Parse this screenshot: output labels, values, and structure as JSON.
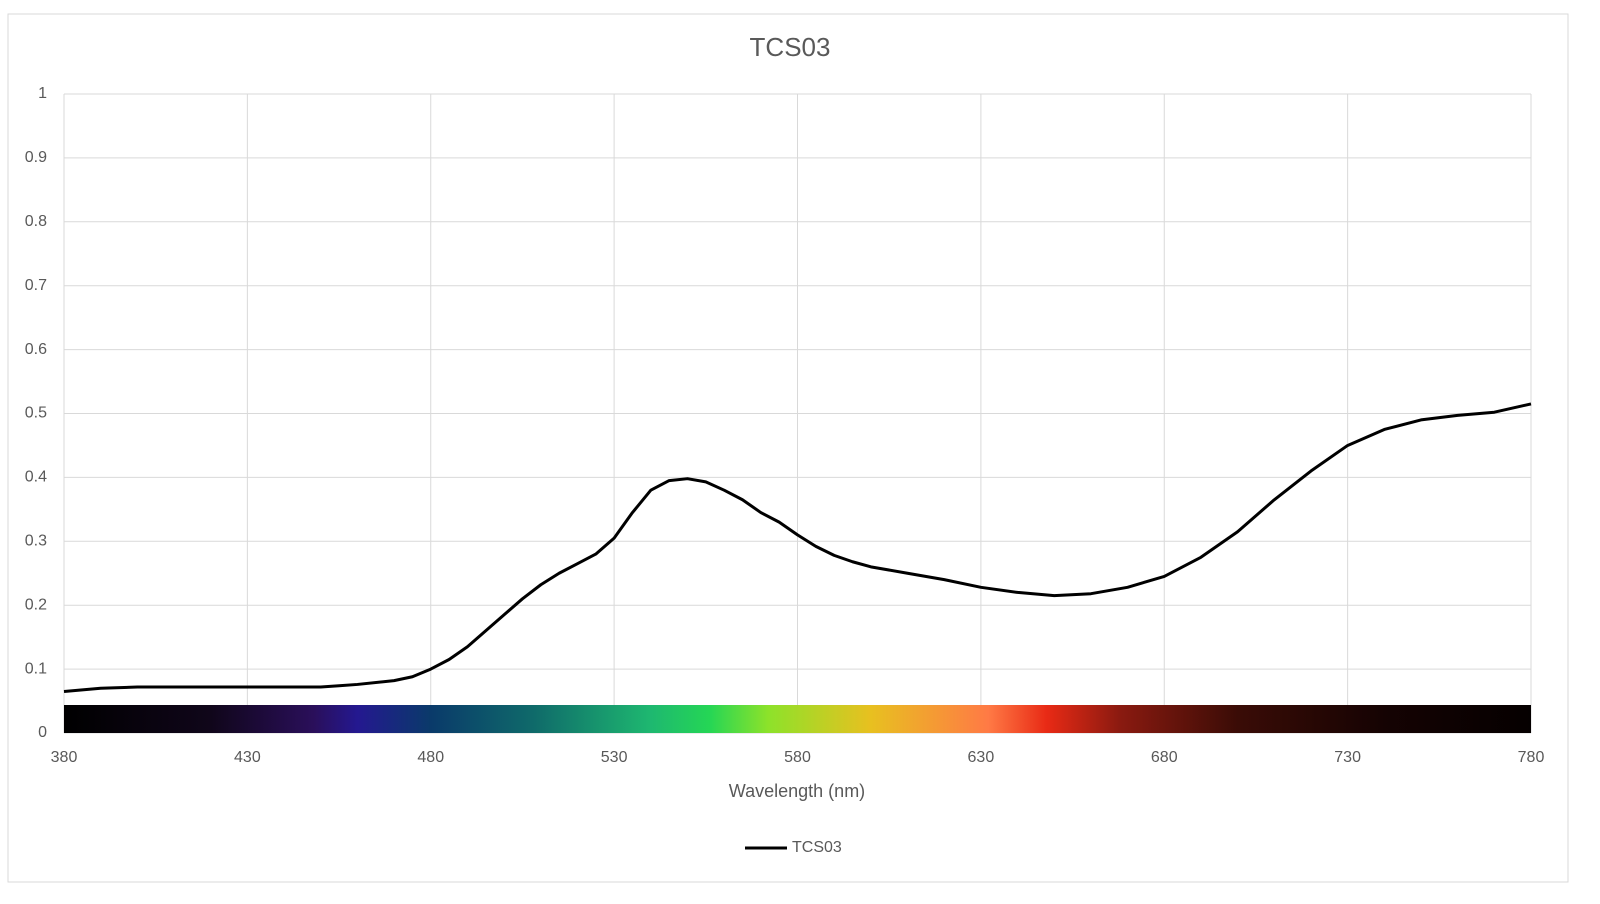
{
  "chart_data": {
    "type": "line",
    "title": "TCS03",
    "x_label": "Wavelength (nm)",
    "x": [
      380,
      390,
      400,
      410,
      420,
      430,
      440,
      450,
      455,
      460,
      470,
      475,
      480,
      485,
      490,
      495,
      500,
      505,
      510,
      515,
      520,
      525,
      530,
      535,
      540,
      545,
      550,
      555,
      560,
      565,
      570,
      575,
      580,
      585,
      590,
      595,
      600,
      610,
      620,
      630,
      640,
      650,
      660,
      670,
      680,
      690,
      700,
      710,
      720,
      730,
      740,
      750,
      760,
      770,
      780
    ],
    "series": [
      {
        "name": "TCS03",
        "color": "#000000",
        "values": [
          0.065,
          0.07,
          0.072,
          0.072,
          0.072,
          0.072,
          0.072,
          0.072,
          0.074,
          0.076,
          0.082,
          0.088,
          0.1,
          0.115,
          0.135,
          0.16,
          0.185,
          0.21,
          0.232,
          0.25,
          0.265,
          0.28,
          0.305,
          0.345,
          0.38,
          0.395,
          0.398,
          0.393,
          0.38,
          0.365,
          0.345,
          0.33,
          0.31,
          0.292,
          0.278,
          0.268,
          0.26,
          0.25,
          0.24,
          0.228,
          0.22,
          0.215,
          0.218,
          0.228,
          0.245,
          0.275,
          0.315,
          0.365,
          0.41,
          0.45,
          0.475,
          0.49,
          0.497,
          0.502,
          0.515
        ]
      }
    ],
    "xlim": [
      380,
      780
    ],
    "xticks": [
      380,
      430,
      480,
      530,
      580,
      630,
      680,
      730,
      780
    ],
    "ylim": [
      0,
      1
    ],
    "yticks": [
      0,
      0.1,
      0.2,
      0.3,
      0.4,
      0.5,
      0.6,
      0.7,
      0.8,
      0.9,
      1
    ],
    "grid": true,
    "legend": "bottom"
  }
}
